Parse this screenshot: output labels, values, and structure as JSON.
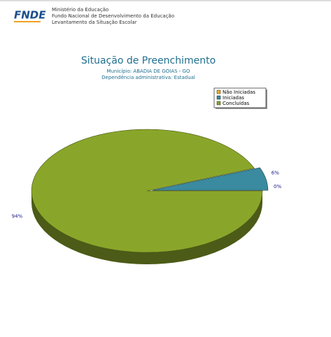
{
  "header": {
    "logo": "FNDE",
    "lines": [
      "Ministério da Educação",
      "Fundo Nacional de Desenvolvimento da Educação",
      "Levantamento da Situação Escolar"
    ]
  },
  "chart_data": {
    "type": "pie",
    "title": "Situação de Preenchimento",
    "subtitle": [
      "Município: ABADIA DE GOIAS - GO",
      "Dependência administrativa: Estadual"
    ],
    "categories": [
      "Não Iniciadas",
      "Iniciadas",
      "Concluídas"
    ],
    "values": [
      0,
      6,
      94
    ],
    "value_labels": [
      "0%",
      "6%",
      "94%"
    ],
    "colors": [
      "#e8b020",
      "#3a8aa0",
      "#8aa62a"
    ],
    "legend": "top-right"
  }
}
